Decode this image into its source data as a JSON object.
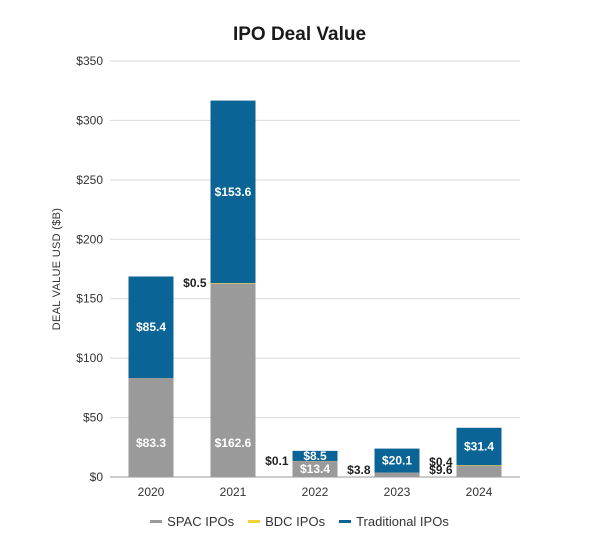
{
  "chart_data": {
    "type": "bar",
    "stacked": true,
    "title": "IPO Deal Value",
    "ylabel": "DEAL VALUE USD ($B)",
    "xlabel": "",
    "ylim": [
      0,
      350
    ],
    "yticks": [
      0,
      50,
      100,
      150,
      200,
      250,
      300,
      350
    ],
    "ytick_labels": [
      "$0",
      "$50",
      "$100",
      "$150",
      "$200",
      "$250",
      "$300",
      "$350"
    ],
    "categories": [
      "2020",
      "2021",
      "2022",
      "2023",
      "2024"
    ],
    "grid": true,
    "legend_position": "bottom",
    "series": [
      {
        "name": "SPAC IPOs",
        "color": "#9a9a9a",
        "values": [
          83.3,
          162.6,
          13.4,
          3.8,
          9.6
        ],
        "labels": [
          "$83.3",
          "$162.6",
          "$13.4",
          "$3.8",
          "$9.6"
        ]
      },
      {
        "name": "BDC IPOs",
        "color": "#f2d03b",
        "values": [
          0.0,
          0.5,
          0.1,
          0.0,
          0.4
        ],
        "labels": [
          "",
          "$0.5",
          "$0.1",
          "",
          "$0.4"
        ]
      },
      {
        "name": "Traditional IPOs",
        "color": "#0b6496",
        "values": [
          85.4,
          153.6,
          8.5,
          20.1,
          31.4
        ],
        "labels": [
          "$85.4",
          "$153.6",
          "$8.5",
          "$20.1",
          "$31.4"
        ]
      }
    ]
  }
}
